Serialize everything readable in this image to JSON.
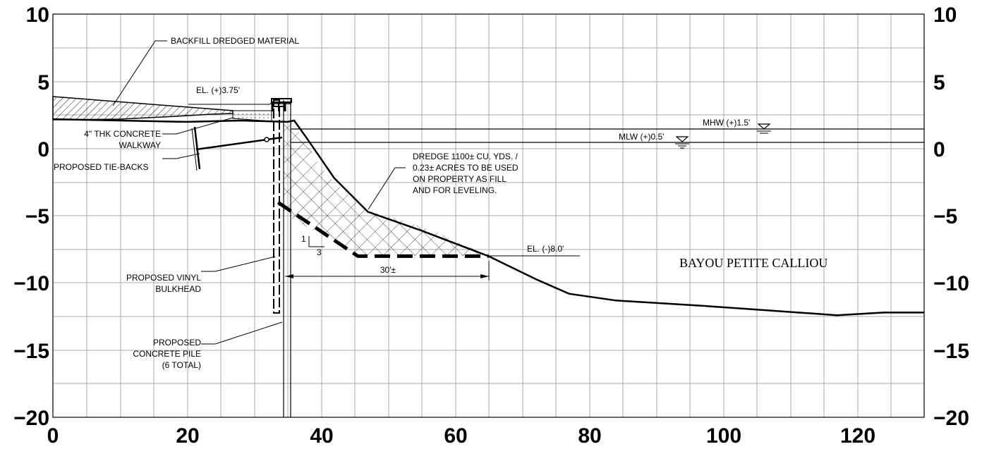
{
  "axes": {
    "x_ticks": [
      "0",
      "20",
      "40",
      "60",
      "80",
      "100",
      "120"
    ],
    "y_ticks": [
      "10",
      "5",
      "0",
      "−5",
      "−10",
      "−15",
      "−20"
    ]
  },
  "labels": {
    "backfill": "BACKFILL DREDGED MATERIAL",
    "el_top": "EL. (+)3.75'",
    "walkway_line1": "4\" THK CONCRETE",
    "walkway_line2": "WALKWAY",
    "tiebacks": "PROPOSED  TIE-BACKS",
    "mhw": "MHW (+)1.5'",
    "mlw": "MLW (+)0.5'",
    "dredge_line1": "DREDGE 1100± CU. YDS. /",
    "dredge_line2": "0.23± ACRES TO BE USED",
    "dredge_line3": "ON PROPERTY AS FILL",
    "dredge_line4": "AND FOR LEVELING.",
    "slope_rise": "1",
    "slope_run": "3",
    "el_bottom": "EL. (-)8.0'",
    "bayou": "BAYOU PETITE CALLIOU",
    "bulkhead_line1": "PROPOSED VINYL",
    "bulkhead_line2": "BULKHEAD",
    "dimension": "30'±",
    "pile_line1": "PROPOSED",
    "pile_line2": "CONCRETE PILE",
    "pile_line3": "(6 TOTAL)"
  },
  "profile": {
    "existing_grade": [
      [
        0,
        2.2
      ],
      [
        10,
        2.1
      ],
      [
        20,
        2.0
      ],
      [
        28,
        2.1
      ],
      [
        35,
        2.0
      ],
      [
        36,
        2.1
      ],
      [
        38,
        0.7
      ],
      [
        42,
        -2.2
      ],
      [
        47,
        -4.7
      ],
      [
        55,
        -6.1
      ],
      [
        65,
        -8.0
      ],
      [
        72,
        -9.7
      ],
      [
        77,
        -10.8
      ],
      [
        84,
        -11.3
      ],
      [
        97,
        -11.7
      ],
      [
        117,
        -12.4
      ],
      [
        124,
        -12.2
      ],
      [
        130,
        -12.2
      ]
    ],
    "dredge_template": [
      [
        33.6,
        -4.0
      ],
      [
        45.5,
        -8.0
      ],
      [
        65,
        -8.0
      ]
    ],
    "mhw_elevation": 1.5,
    "mlw_elevation": 0.5
  },
  "colors": {
    "ink": "#000000",
    "grid": "#a9a9a9",
    "background": "#ffffff"
  }
}
